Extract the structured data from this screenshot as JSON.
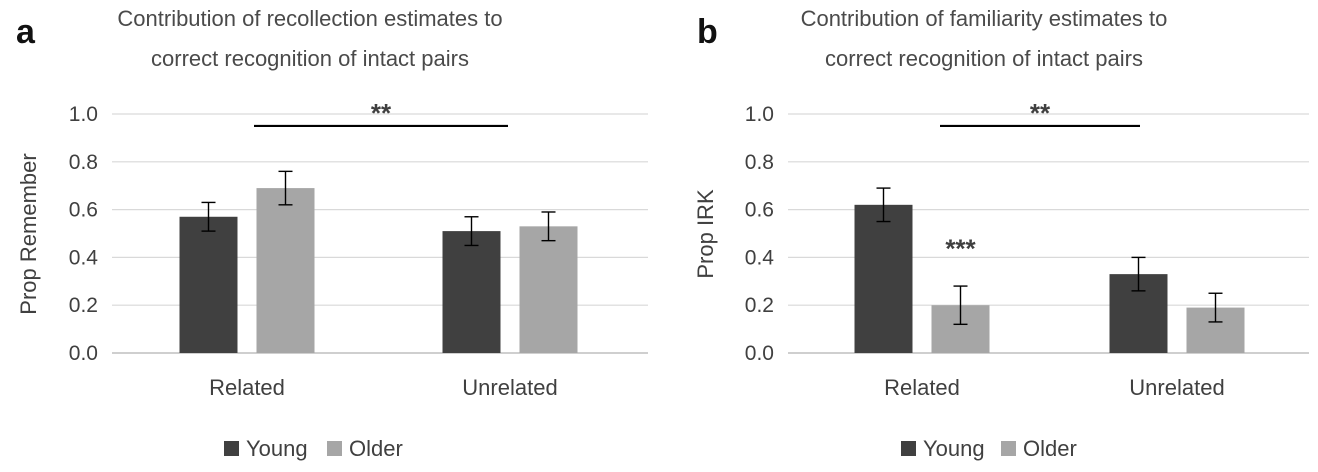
{
  "colors": {
    "young": "#404040",
    "older": "#a6a6a6",
    "grid": "#d9d9d9",
    "axis": "#bfbfbf",
    "errorbar": "#000000"
  },
  "chart_data": [
    {
      "panel_letter": "a",
      "type": "bar",
      "title_lines": [
        "Contribution of recollection estimates to",
        "correct recognition of intact pairs"
      ],
      "ylabel": "Prop Remember",
      "ylim": [
        0,
        1.0
      ],
      "yticks": [
        "0.0",
        "0.2",
        "0.4",
        "0.6",
        "0.8",
        "1.0"
      ],
      "categories": [
        "Related",
        "Unrelated"
      ],
      "series": [
        {
          "name": "Young",
          "values": [
            0.57,
            0.51
          ],
          "errors": [
            0.06,
            0.06
          ]
        },
        {
          "name": "Older",
          "values": [
            0.69,
            0.53
          ],
          "errors": [
            0.07,
            0.06
          ]
        }
      ],
      "annotations": [
        {
          "text": "**",
          "type": "bracket",
          "y": 0.95
        }
      ],
      "grid": true,
      "legend": "bottom"
    },
    {
      "panel_letter": "b",
      "type": "bar",
      "title_lines": [
        "Contribution of familiarity estimates to",
        "correct recognition of intact pairs"
      ],
      "ylabel": "Prop IRK",
      "ylim": [
        0,
        1.0
      ],
      "yticks": [
        "0.0",
        "0.2",
        "0.4",
        "0.6",
        "0.8",
        "1.0"
      ],
      "categories": [
        "Related",
        "Unrelated"
      ],
      "series": [
        {
          "name": "Young",
          "values": [
            0.62,
            0.33
          ],
          "errors": [
            0.07,
            0.07
          ]
        },
        {
          "name": "Older",
          "values": [
            0.2,
            0.19
          ],
          "errors": [
            0.08,
            0.06
          ]
        }
      ],
      "annotations": [
        {
          "text": "**",
          "type": "bracket",
          "y": 0.95
        },
        {
          "text": "***",
          "type": "label",
          "category": 0,
          "series": 1,
          "y": 0.45
        }
      ],
      "grid": true,
      "legend": "bottom"
    }
  ]
}
